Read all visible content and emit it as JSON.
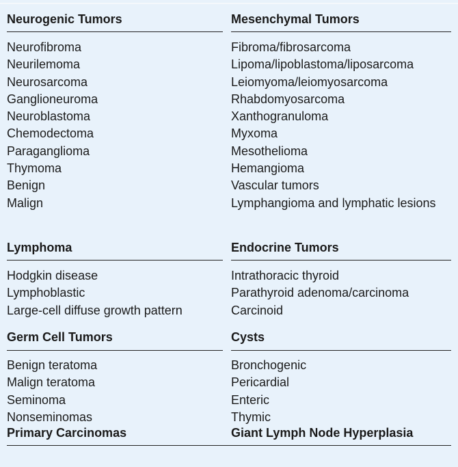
{
  "sections": {
    "neurogenic": {
      "header": "Neurogenic Tumors",
      "items": [
        "Neurofibroma",
        "Neurilemoma",
        "Neurosarcoma",
        "Ganglioneuroma",
        "Neuroblastoma",
        "Chemodectoma",
        "Paraganglioma",
        "Thymoma",
        "Benign",
        "Malign"
      ]
    },
    "mesenchymal": {
      "header": "Mesenchymal Tumors",
      "items": [
        "Fibroma/fibrosarcoma",
        "Lipoma/lipoblastoma/liposarcoma",
        "Leiomyoma/leiomyosarcoma",
        "Rhabdomyosarcoma",
        "Xanthogranuloma",
        "Myxoma",
        "Mesothelioma",
        "Hemangioma",
        "Vascular tumors",
        "Lymphangioma and lymphatic lesions"
      ]
    },
    "lymphoma": {
      "header": "Lymphoma",
      "items": [
        "Hodgkin disease",
        "Lymphoblastic",
        "Large-cell diffuse growth pattern"
      ]
    },
    "endocrine": {
      "header": "Endocrine Tumors",
      "items": [
        "Intrathoracic thyroid",
        "Parathyroid adenoma/carcinoma",
        "Carcinoid"
      ]
    },
    "germ_cell": {
      "header": "Germ Cell Tumors",
      "items": [
        "Benign teratoma",
        "Malign teratoma",
        "Seminoma",
        "Nonseminomas"
      ]
    },
    "cysts": {
      "header": "Cysts",
      "items": [
        "Bronchogenic",
        "Pericardial",
        "Enteric",
        "Thymic"
      ]
    },
    "primary_carcinomas": {
      "header": "Primary Carcinomas"
    },
    "giant_lymph_node": {
      "header": "Giant Lymph Node Hyperplasia"
    }
  }
}
